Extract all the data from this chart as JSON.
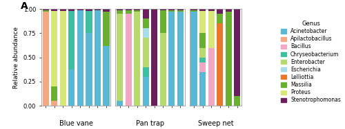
{
  "genera": [
    "Acinetobacter",
    "Apilactobacillus",
    "Bacillus",
    "Chryseobacterium",
    "Enterobacter",
    "Escherichia",
    "Lelliottia",
    "Massilia",
    "Proteus",
    "Stenotrophomonas"
  ],
  "colors": [
    "#5bb8d4",
    "#f4a882",
    "#f2a8c4",
    "#3dbfa0",
    "#b8d96e",
    "#a8dce8",
    "#e87828",
    "#6ab030",
    "#d8e878",
    "#6b1e5e"
  ],
  "groups": [
    "Blue vane",
    "Pan trap",
    "Sweep net"
  ],
  "yticks": [
    0.0,
    0.25,
    0.5,
    0.75,
    1.0
  ],
  "ylabel": "Relative abundance",
  "blue_vane": [
    [
      0.0,
      0.97,
      0.0,
      0.0,
      0.0,
      0.0,
      0.0,
      0.02,
      0.0,
      0.01
    ],
    [
      0.0,
      0.05,
      0.0,
      0.0,
      0.0,
      0.0,
      0.0,
      0.15,
      0.78,
      0.02
    ],
    [
      0.0,
      0.0,
      0.0,
      0.0,
      0.0,
      0.0,
      0.0,
      0.0,
      0.98,
      0.02
    ],
    [
      0.38,
      0.0,
      0.0,
      0.6,
      0.0,
      0.0,
      0.0,
      0.0,
      0.0,
      0.02
    ],
    [
      0.99,
      0.0,
      0.0,
      0.0,
      0.0,
      0.0,
      0.0,
      0.0,
      0.0,
      0.01
    ],
    [
      0.75,
      0.0,
      0.0,
      0.23,
      0.0,
      0.0,
      0.0,
      0.0,
      0.0,
      0.02
    ],
    [
      0.99,
      0.0,
      0.0,
      0.0,
      0.0,
      0.0,
      0.0,
      0.0,
      0.0,
      0.01
    ],
    [
      0.62,
      0.0,
      0.0,
      0.0,
      0.0,
      0.0,
      0.0,
      0.35,
      0.0,
      0.03
    ]
  ],
  "pan_trap": [
    [
      0.05,
      0.0,
      0.0,
      0.0,
      0.9,
      0.0,
      0.0,
      0.04,
      0.0,
      0.01
    ],
    [
      0.0,
      0.0,
      0.95,
      0.0,
      0.0,
      0.0,
      0.0,
      0.04,
      0.0,
      0.01
    ],
    [
      0.0,
      0.0,
      0.0,
      0.0,
      0.97,
      0.0,
      0.0,
      0.02,
      0.0,
      0.01
    ],
    [
      0.3,
      0.0,
      0.0,
      0.1,
      0.3,
      0.1,
      0.0,
      0.1,
      0.0,
      0.1
    ],
    [
      0.0,
      0.0,
      0.0,
      0.0,
      0.0,
      0.0,
      0.0,
      0.0,
      0.0,
      1.0
    ],
    [
      0.0,
      0.0,
      0.0,
      0.0,
      0.75,
      0.0,
      0.0,
      0.24,
      0.0,
      0.01
    ],
    [
      0.97,
      0.0,
      0.0,
      0.0,
      0.0,
      0.0,
      0.0,
      0.02,
      0.0,
      0.01
    ],
    [
      0.97,
      0.0,
      0.0,
      0.0,
      0.0,
      0.0,
      0.0,
      0.02,
      0.0,
      0.01
    ]
  ],
  "sweep_net": [
    [
      0.97,
      0.0,
      0.0,
      0.0,
      0.0,
      0.0,
      0.0,
      0.02,
      0.0,
      0.01
    ],
    [
      0.35,
      0.0,
      0.1,
      0.05,
      0.1,
      0.0,
      0.0,
      0.15,
      0.23,
      0.02
    ],
    [
      0.0,
      0.0,
      0.6,
      0.0,
      0.0,
      0.0,
      0.0,
      0.0,
      0.38,
      0.02
    ],
    [
      0.0,
      0.0,
      0.0,
      0.0,
      0.0,
      0.0,
      0.85,
      0.1,
      0.0,
      0.05
    ],
    [
      0.0,
      0.0,
      0.0,
      0.0,
      0.0,
      0.0,
      0.0,
      0.97,
      0.0,
      0.03
    ],
    [
      0.0,
      0.0,
      0.0,
      0.0,
      0.0,
      0.0,
      0.0,
      0.1,
      0.0,
      0.9
    ]
  ]
}
